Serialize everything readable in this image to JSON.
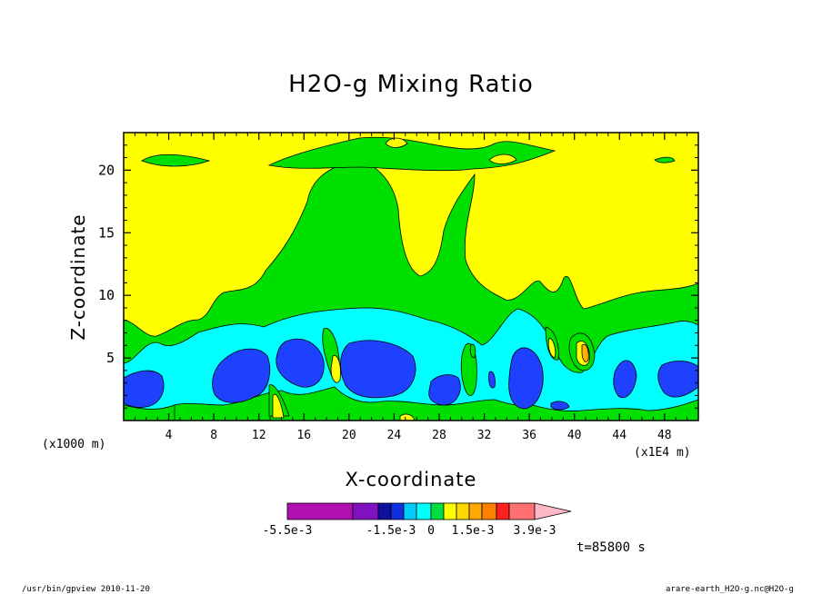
{
  "title": "H2O-g Mixing Ratio",
  "xlabel": "X-coordinate",
  "ylabel": "Z-coordinate",
  "x_unit_left": "(x1000 m)",
  "x_unit_right": "(x1E4 m)",
  "time_label": "t=85800 s",
  "footer_left": "/usr/bin/gpview  2010-11-20",
  "footer_right": "arare-earth_H2O-g.nc@H2O-g",
  "colorbar": {
    "labels": [
      "-5.5e-3",
      "-1.5e-3",
      "0",
      "1.5e-3",
      "3.9e-3"
    ],
    "colors": [
      "#a020a0",
      "#a020a0",
      "#a020a0",
      "#8010b0",
      "#1010b0",
      "#1040e0",
      "#00c0ff",
      "#00ffff",
      "#00e060",
      "#ffff00",
      "#ffd800",
      "#ffb000",
      "#ff8000",
      "#ff3020",
      "#ff0000",
      "#ff7070",
      "#ffb0c0"
    ]
  },
  "colors": {
    "yellow": "#ffff00",
    "green": "#00e000",
    "cyan": "#00ffff",
    "blue": "#1e40ff",
    "orange": "#ffb000"
  },
  "chart_data": {
    "type": "heatmap",
    "title": "H2O-g Mixing Ratio",
    "xlabel": "X-coordinate",
    "ylabel": "Z-coordinate",
    "xlim": [
      0,
      51
    ],
    "ylim": [
      0,
      23
    ],
    "x_ticks": [
      4,
      8,
      12,
      16,
      20,
      24,
      28,
      32,
      36,
      40,
      44,
      48
    ],
    "y_ticks": [
      5,
      10,
      15,
      20
    ],
    "x_units": "(x1000 m) / (x1E4 m)",
    "colorbar_levels": [
      "-5.5e-3",
      "-1.5e-3",
      "0",
      "1.5e-3",
      "3.9e-3"
    ],
    "time": "t=85800 s"
  }
}
